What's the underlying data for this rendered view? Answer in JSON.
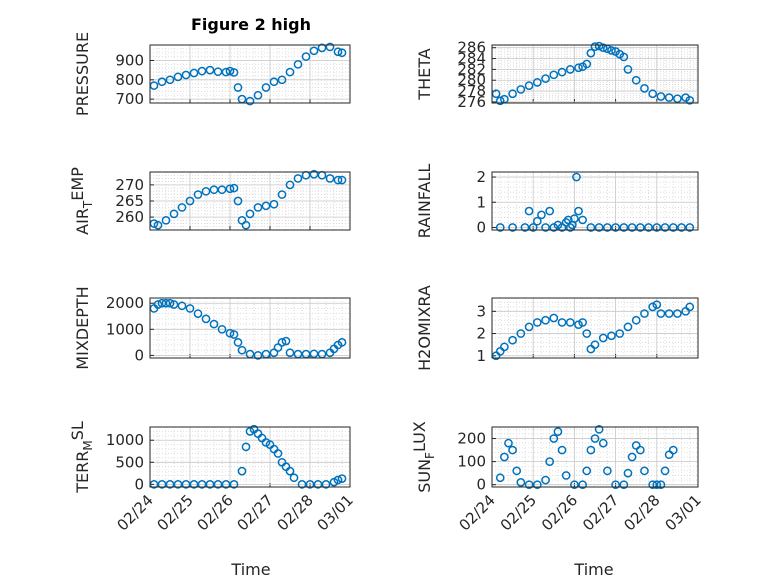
{
  "figure": {
    "title": "Figure 2 high",
    "xlabel": "Time",
    "xticks": [
      "02/24",
      "02/25",
      "02/26",
      "02/27",
      "02/28",
      "03/01"
    ],
    "marker_color": "#0072bd"
  },
  "chart_data": [
    {
      "type": "scatter",
      "ylabel": "PRESSURE",
      "ylim": [
        680,
        980
      ],
      "yticks": [
        700,
        800,
        900
      ],
      "xlim": [
        0,
        5
      ],
      "grid": true,
      "x": [
        0.1,
        0.3,
        0.5,
        0.7,
        0.9,
        1.1,
        1.3,
        1.5,
        1.7,
        1.9,
        2.0,
        2.1,
        2.2,
        2.3,
        2.5,
        2.7,
        2.9,
        3.1,
        3.3,
        3.5,
        3.7,
        3.9,
        4.1,
        4.3,
        4.5,
        4.7,
        4.8
      ],
      "y": [
        770,
        790,
        800,
        815,
        825,
        835,
        845,
        850,
        842,
        840,
        845,
        838,
        760,
        700,
        690,
        720,
        760,
        790,
        800,
        840,
        880,
        920,
        950,
        965,
        970,
        945,
        940
      ]
    },
    {
      "type": "scatter",
      "ylabel": "THETA",
      "ylim": [
        275.8,
        286.5
      ],
      "yticks": [
        276,
        278,
        280,
        282,
        284,
        286
      ],
      "xlim": [
        0,
        5
      ],
      "grid": true,
      "x": [
        0.1,
        0.2,
        0.3,
        0.5,
        0.7,
        0.9,
        1.1,
        1.3,
        1.5,
        1.7,
        1.9,
        2.1,
        2.2,
        2.3,
        2.4,
        2.5,
        2.6,
        2.7,
        2.8,
        2.9,
        3.0,
        3.1,
        3.2,
        3.3,
        3.5,
        3.7,
        3.9,
        4.1,
        4.3,
        4.5,
        4.7,
        4.8
      ],
      "y": [
        277.5,
        276.2,
        276.5,
        277.5,
        278.3,
        279,
        279.6,
        280.3,
        281,
        281.5,
        282,
        282.3,
        282.5,
        283,
        285,
        286.2,
        286.3,
        286,
        285.8,
        285.5,
        285.3,
        284.8,
        284.3,
        282,
        280,
        278.5,
        277.5,
        277,
        276.8,
        276.6,
        276.8,
        276.3
      ]
    },
    {
      "type": "scatter",
      "ylabel": "AIR_TEMP",
      "ylim": [
        256,
        274
      ],
      "yticks": [
        260,
        265,
        270
      ],
      "xlim": [
        0,
        5
      ],
      "grid": true,
      "x": [
        0.1,
        0.2,
        0.4,
        0.6,
        0.8,
        1.0,
        1.2,
        1.4,
        1.6,
        1.8,
        2.0,
        2.1,
        2.2,
        2.3,
        2.4,
        2.5,
        2.7,
        2.9,
        3.1,
        3.3,
        3.5,
        3.7,
        3.9,
        4.1,
        4.3,
        4.5,
        4.7,
        4.8
      ],
      "y": [
        258,
        257.5,
        259,
        261,
        263,
        265,
        267,
        268,
        268.5,
        268.5,
        268.8,
        269,
        265,
        259,
        257.5,
        261,
        263,
        263.5,
        264,
        267,
        270,
        272,
        273,
        273.3,
        273,
        272,
        271.5,
        271.5
      ]
    },
    {
      "type": "scatter",
      "ylabel": "MIXDEPTH",
      "ylim": [
        -100,
        2200
      ],
      "yticks": [
        0,
        1000,
        2000
      ],
      "xlim": [
        0,
        5
      ],
      "grid": true,
      "x": [
        0.1,
        0.2,
        0.3,
        0.4,
        0.5,
        0.6,
        0.8,
        1.0,
        1.2,
        1.4,
        1.6,
        1.8,
        2.0,
        2.1,
        2.2,
        2.3,
        2.5,
        2.7,
        2.9,
        3.1,
        3.2,
        3.3,
        3.4,
        3.5,
        3.7,
        3.9,
        4.1,
        4.3,
        4.5,
        4.6,
        4.7,
        4.8
      ],
      "y": [
        1800,
        1950,
        2000,
        2000,
        2000,
        1950,
        1900,
        1800,
        1600,
        1400,
        1200,
        1000,
        850,
        800,
        500,
        200,
        50,
        0,
        50,
        100,
        300,
        500,
        550,
        100,
        50,
        50,
        60,
        50,
        100,
        250,
        400,
        500
      ]
    },
    {
      "type": "scatter",
      "ylabel": "H2OMIXRA",
      "ylim": [
        0.9,
        3.6
      ],
      "yticks": [
        1,
        2,
        3
      ],
      "xlim": [
        0,
        5
      ],
      "grid": true,
      "x": [
        0.1,
        0.2,
        0.3,
        0.5,
        0.7,
        0.9,
        1.1,
        1.3,
        1.5,
        1.7,
        1.9,
        2.1,
        2.2,
        2.3,
        2.4,
        2.5,
        2.7,
        2.9,
        3.1,
        3.3,
        3.5,
        3.7,
        3.9,
        4.0,
        4.1,
        4.3,
        4.5,
        4.7,
        4.8
      ],
      "y": [
        1.0,
        1.2,
        1.4,
        1.7,
        2.0,
        2.3,
        2.5,
        2.6,
        2.7,
        2.5,
        2.5,
        2.4,
        2.5,
        2.0,
        1.3,
        1.5,
        1.8,
        1.9,
        2.0,
        2.3,
        2.6,
        2.9,
        3.2,
        3.3,
        2.9,
        2.9,
        2.9,
        3.0,
        3.2
      ]
    },
    {
      "type": "scatter",
      "ylabel": "RAINFALL",
      "ylim": [
        -0.1,
        2.2
      ],
      "yticks": [
        0,
        1,
        2
      ],
      "xlim": [
        0,
        5
      ],
      "grid": true,
      "x": [
        0.2,
        0.5,
        0.8,
        0.9,
        1.0,
        1.1,
        1.2,
        1.3,
        1.4,
        1.5,
        1.6,
        1.7,
        1.8,
        1.85,
        1.9,
        1.95,
        2.0,
        2.05,
        2.1,
        2.2,
        2.4,
        2.6,
        2.8,
        3.0,
        3.2,
        3.4,
        3.6,
        3.8,
        4.0,
        4.2,
        4.4,
        4.6,
        4.8
      ],
      "y": [
        0,
        0,
        0,
        0.65,
        0,
        0.25,
        0.5,
        0,
        0.65,
        0,
        0.1,
        0,
        0.2,
        0.3,
        0,
        0.1,
        0.35,
        2.0,
        0.65,
        0.3,
        0,
        0,
        0,
        0,
        0,
        0,
        0,
        0,
        0,
        0,
        0,
        0,
        0
      ]
    },
    {
      "type": "scatter",
      "ylabel": "TERR_MSL",
      "ylim": [
        -60,
        1300
      ],
      "yticks": [
        0,
        500,
        1000
      ],
      "xlim": [
        0,
        5
      ],
      "grid": true,
      "x": [
        0.1,
        0.3,
        0.5,
        0.7,
        0.9,
        1.1,
        1.3,
        1.5,
        1.7,
        1.9,
        2.1,
        2.3,
        2.4,
        2.5,
        2.6,
        2.7,
        2.8,
        2.9,
        3.0,
        3.1,
        3.2,
        3.3,
        3.4,
        3.5,
        3.6,
        3.8,
        4.0,
        4.2,
        4.4,
        4.6,
        4.7,
        4.8
      ],
      "y": [
        0,
        0,
        0,
        0,
        0,
        0,
        0,
        0,
        0,
        0,
        0,
        300,
        850,
        1200,
        1250,
        1150,
        1050,
        950,
        900,
        800,
        700,
        500,
        400,
        300,
        150,
        0,
        0,
        0,
        0,
        50,
        100,
        130
      ]
    },
    {
      "type": "scatter",
      "ylabel": "SUN_FLUX",
      "ylim": [
        -10,
        250
      ],
      "yticks": [
        0,
        100,
        200
      ],
      "xlim": [
        0,
        5
      ],
      "grid": true,
      "x": [
        0.2,
        0.3,
        0.4,
        0.5,
        0.6,
        0.7,
        0.9,
        1.1,
        1.3,
        1.4,
        1.5,
        1.6,
        1.7,
        1.8,
        2.0,
        2.2,
        2.3,
        2.4,
        2.5,
        2.6,
        2.7,
        2.8,
        3.0,
        3.2,
        3.3,
        3.4,
        3.5,
        3.6,
        3.7,
        3.9,
        4.0,
        4.1,
        4.2,
        4.3,
        4.4
      ],
      "y": [
        30,
        120,
        180,
        150,
        60,
        10,
        0,
        0,
        20,
        100,
        200,
        230,
        150,
        40,
        0,
        0,
        60,
        150,
        200,
        240,
        180,
        60,
        0,
        0,
        50,
        120,
        170,
        150,
        60,
        0,
        0,
        0,
        60,
        130,
        150
      ]
    }
  ]
}
